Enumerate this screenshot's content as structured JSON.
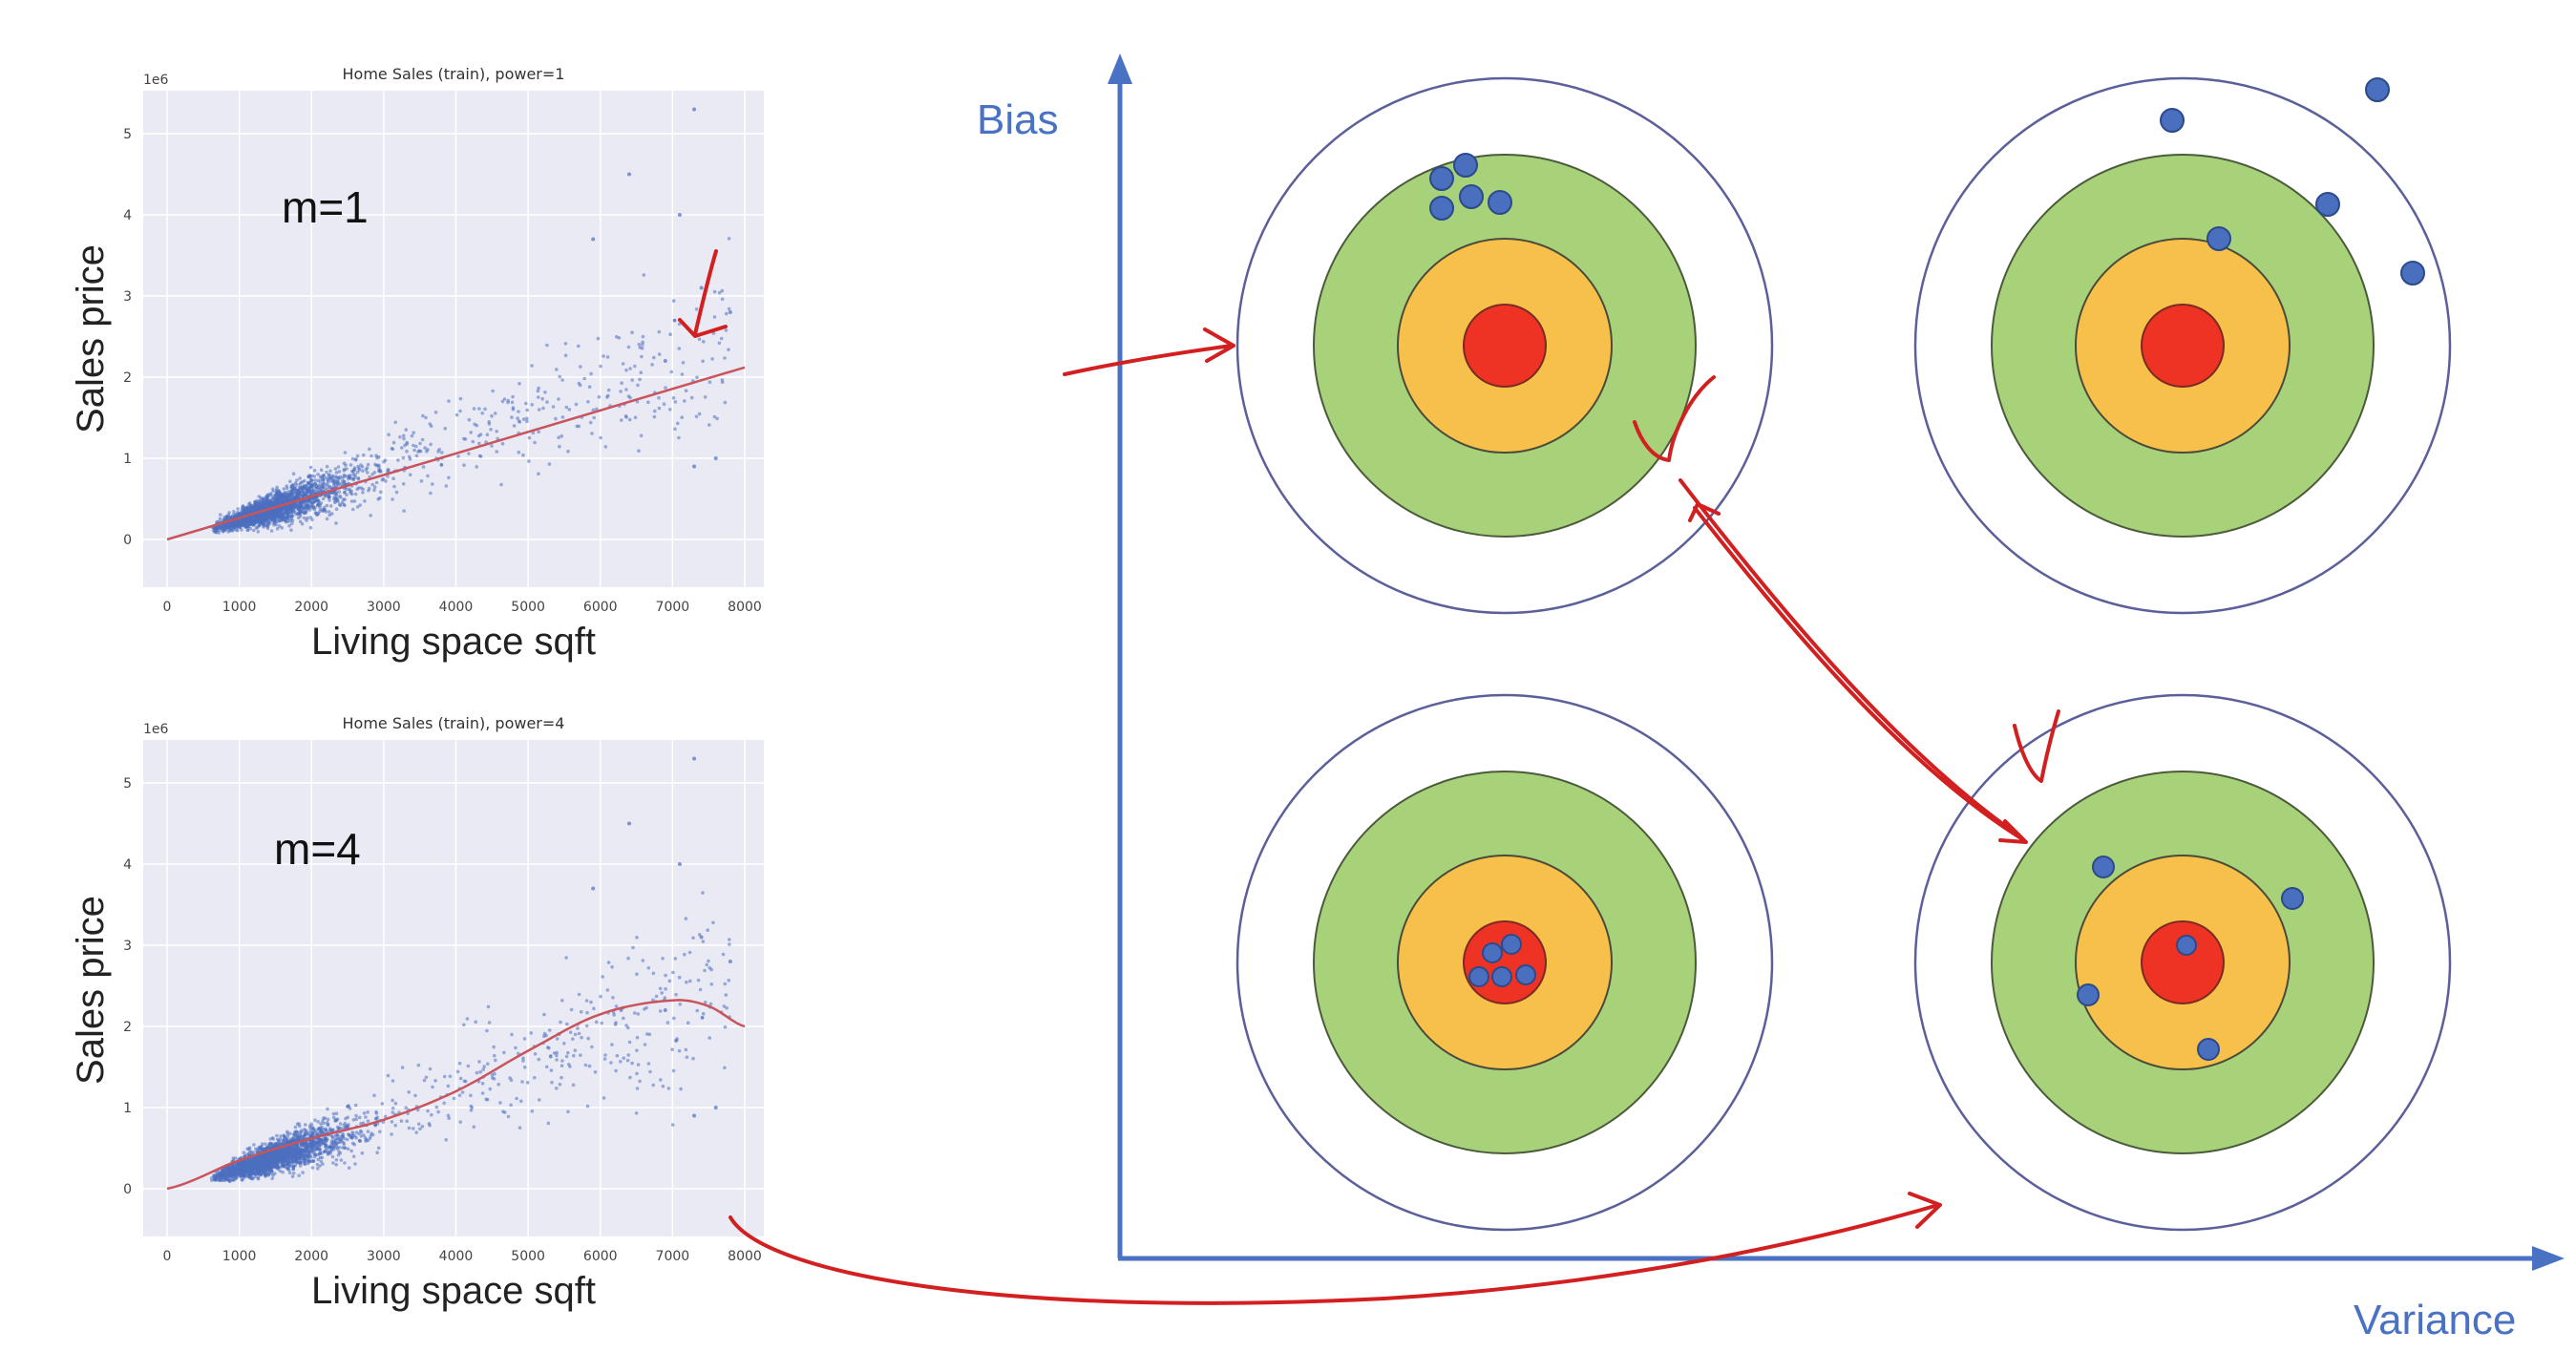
{
  "plots": [
    {
      "title": "Home Sales (train), power=1",
      "exponent_label": "1e6",
      "model_label": "m=1",
      "xlabel": "Living space sqft",
      "ylabel": "Sales price",
      "xticks": [
        "0",
        "1000",
        "2000",
        "3000",
        "4000",
        "5000",
        "6000",
        "7000",
        "8000"
      ],
      "yticks": [
        "0",
        "1",
        "2",
        "3",
        "4",
        "5"
      ]
    },
    {
      "title": "Home Sales (train), power=4",
      "exponent_label": "1e6",
      "model_label": "m=4",
      "xlabel": "Living space sqft",
      "ylabel": "Sales price",
      "xticks": [
        "0",
        "1000",
        "2000",
        "3000",
        "4000",
        "5000",
        "6000",
        "7000",
        "8000"
      ],
      "yticks": [
        "0",
        "1",
        "2",
        "3",
        "4",
        "5"
      ]
    }
  ],
  "chart_data": [
    {
      "type": "scatter",
      "title": "Home Sales (train), power=1",
      "xlabel": "Living space sqft",
      "ylabel": "Sales price",
      "xlim": [
        0,
        8200
      ],
      "ylim": [
        0,
        5.5
      ],
      "y_scale_note": "1e6",
      "fit_degree": 1,
      "fit_curve": {
        "x": [
          0,
          8000
        ],
        "y": [
          0.0,
          2.12
        ]
      }
    },
    {
      "type": "scatter",
      "title": "Home Sales (train), power=4",
      "xlabel": "Living space sqft",
      "ylabel": "Sales price",
      "xlim": [
        0,
        8200
      ],
      "ylim": [
        0,
        5.5
      ],
      "y_scale_note": "1e6",
      "fit_degree": 4,
      "fit_curve": {
        "x": [
          0,
          1000,
          2000,
          3000,
          4000,
          5000,
          6000,
          7000,
          7500,
          8000
        ],
        "y": [
          0.0,
          0.35,
          0.62,
          0.85,
          1.2,
          1.7,
          2.15,
          2.32,
          2.25,
          2.0
        ]
      }
    }
  ],
  "diagram": {
    "y_axis_label": "Bias",
    "x_axis_label": "Variance",
    "colors": {
      "axis": "#4a72c4",
      "ring_outer": "#5b5f9a",
      "green": "#a8d27a",
      "orange": "#f6c04a",
      "red": "#ee3325",
      "dot": "#4a6fbf",
      "ink": "#d21f1f"
    }
  }
}
